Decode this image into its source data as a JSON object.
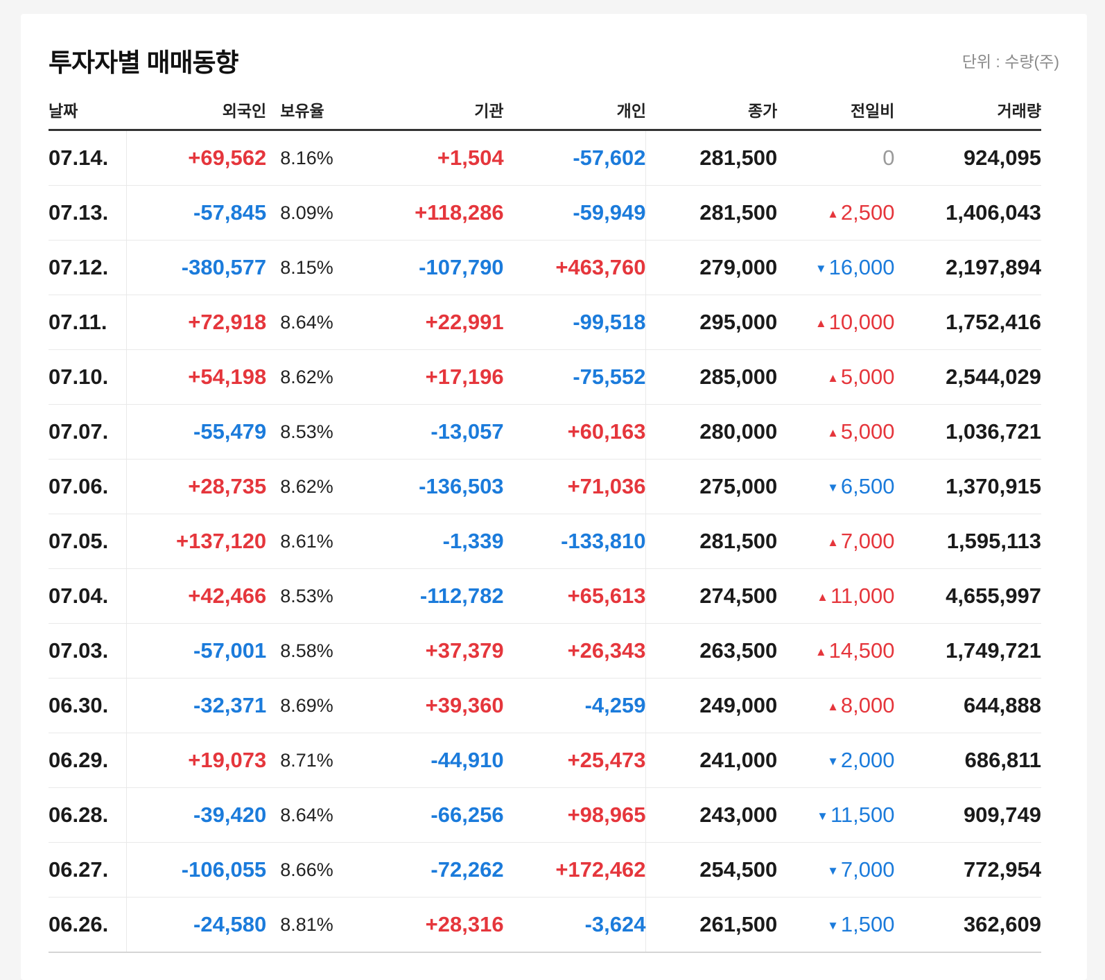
{
  "title": "투자자별 매매동향",
  "unit": "단위 : 수량(주)",
  "colors": {
    "up": "#e5363c",
    "down": "#1b7bdb",
    "flat": "#9a9a9a"
  },
  "columns": {
    "date": "날짜",
    "foreign": "외국인",
    "ratio": "보유율",
    "institution": "기관",
    "individual": "개인",
    "close": "종가",
    "change": "전일비",
    "volume": "거래량"
  },
  "rows": [
    {
      "date": "07.14.",
      "foreign": "+69,562",
      "ratio": "8.16%",
      "institution": "+1,504",
      "individual": "-57,602",
      "close": "281,500",
      "change_dir": "none",
      "change": "0",
      "volume": "924,095"
    },
    {
      "date": "07.13.",
      "foreign": "-57,845",
      "ratio": "8.09%",
      "institution": "+118,286",
      "individual": "-59,949",
      "close": "281,500",
      "change_dir": "up",
      "change": "2,500",
      "volume": "1,406,043"
    },
    {
      "date": "07.12.",
      "foreign": "-380,577",
      "ratio": "8.15%",
      "institution": "-107,790",
      "individual": "+463,760",
      "close": "279,000",
      "change_dir": "down",
      "change": "16,000",
      "volume": "2,197,894"
    },
    {
      "date": "07.11.",
      "foreign": "+72,918",
      "ratio": "8.64%",
      "institution": "+22,991",
      "individual": "-99,518",
      "close": "295,000",
      "change_dir": "up",
      "change": "10,000",
      "volume": "1,752,416"
    },
    {
      "date": "07.10.",
      "foreign": "+54,198",
      "ratio": "8.62%",
      "institution": "+17,196",
      "individual": "-75,552",
      "close": "285,000",
      "change_dir": "up",
      "change": "5,000",
      "volume": "2,544,029"
    },
    {
      "date": "07.07.",
      "foreign": "-55,479",
      "ratio": "8.53%",
      "institution": "-13,057",
      "individual": "+60,163",
      "close": "280,000",
      "change_dir": "up",
      "change": "5,000",
      "volume": "1,036,721"
    },
    {
      "date": "07.06.",
      "foreign": "+28,735",
      "ratio": "8.62%",
      "institution": "-136,503",
      "individual": "+71,036",
      "close": "275,000",
      "change_dir": "down",
      "change": "6,500",
      "volume": "1,370,915"
    },
    {
      "date": "07.05.",
      "foreign": "+137,120",
      "ratio": "8.61%",
      "institution": "-1,339",
      "individual": "-133,810",
      "close": "281,500",
      "change_dir": "up",
      "change": "7,000",
      "volume": "1,595,113"
    },
    {
      "date": "07.04.",
      "foreign": "+42,466",
      "ratio": "8.53%",
      "institution": "-112,782",
      "individual": "+65,613",
      "close": "274,500",
      "change_dir": "up",
      "change": "11,000",
      "volume": "4,655,997"
    },
    {
      "date": "07.03.",
      "foreign": "-57,001",
      "ratio": "8.58%",
      "institution": "+37,379",
      "individual": "+26,343",
      "close": "263,500",
      "change_dir": "up",
      "change": "14,500",
      "volume": "1,749,721"
    },
    {
      "date": "06.30.",
      "foreign": "-32,371",
      "ratio": "8.69%",
      "institution": "+39,360",
      "individual": "-4,259",
      "close": "249,000",
      "change_dir": "up",
      "change": "8,000",
      "volume": "644,888"
    },
    {
      "date": "06.29.",
      "foreign": "+19,073",
      "ratio": "8.71%",
      "institution": "-44,910",
      "individual": "+25,473",
      "close": "241,000",
      "change_dir": "down",
      "change": "2,000",
      "volume": "686,811"
    },
    {
      "date": "06.28.",
      "foreign": "-39,420",
      "ratio": "8.64%",
      "institution": "-66,256",
      "individual": "+98,965",
      "close": "243,000",
      "change_dir": "down",
      "change": "11,500",
      "volume": "909,749"
    },
    {
      "date": "06.27.",
      "foreign": "-106,055",
      "ratio": "8.66%",
      "institution": "-72,262",
      "individual": "+172,462",
      "close": "254,500",
      "change_dir": "down",
      "change": "7,000",
      "volume": "772,954"
    },
    {
      "date": "06.26.",
      "foreign": "-24,580",
      "ratio": "8.81%",
      "institution": "+28,316",
      "individual": "-3,624",
      "close": "261,500",
      "change_dir": "down",
      "change": "1,500",
      "volume": "362,609"
    }
  ]
}
